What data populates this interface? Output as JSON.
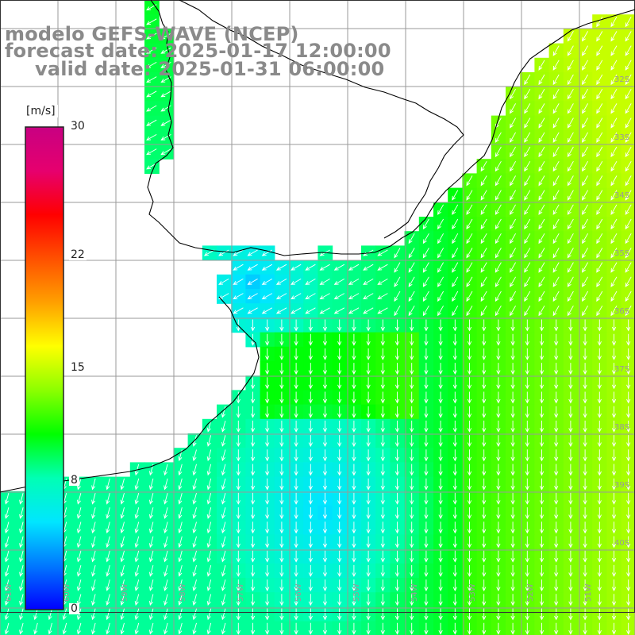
{
  "title": {
    "line1": "modelo GEFS-WAVE (NCEP)",
    "line2": "forecast date: 2025-01-17 12:00:00",
    "line3": "valid date: 2025-01-31 06:00:00"
  },
  "colorbar": {
    "unit": "[m/s]",
    "ticks": [
      "30",
      "22",
      "15",
      "8",
      "0"
    ],
    "tick_values": [
      30,
      22,
      15,
      8,
      0
    ],
    "min": 0,
    "max": 30,
    "colors": [
      "#0000ff",
      "#0078ff",
      "#00e6ff",
      "#00ffb4",
      "#00ff00",
      "#8cff00",
      "#ffff00",
      "#ffa000",
      "#ff5000",
      "#ff0000",
      "#e6006e",
      "#c80082"
    ]
  },
  "map": {
    "lon_labels": [
      "61W",
      "60W",
      "59W",
      "58W",
      "57W",
      "56W",
      "55W",
      "54W",
      "53W",
      "52W",
      "51W"
    ],
    "lat_labels": [
      "32S",
      "33S",
      "34S",
      "35S",
      "36S",
      "37S",
      "38S",
      "39S",
      "40S"
    ],
    "land_color": "#ffffff",
    "grid_color": "#9a9a9a",
    "coast_color": "#000000",
    "arrow_color": "#ffffff"
  }
}
